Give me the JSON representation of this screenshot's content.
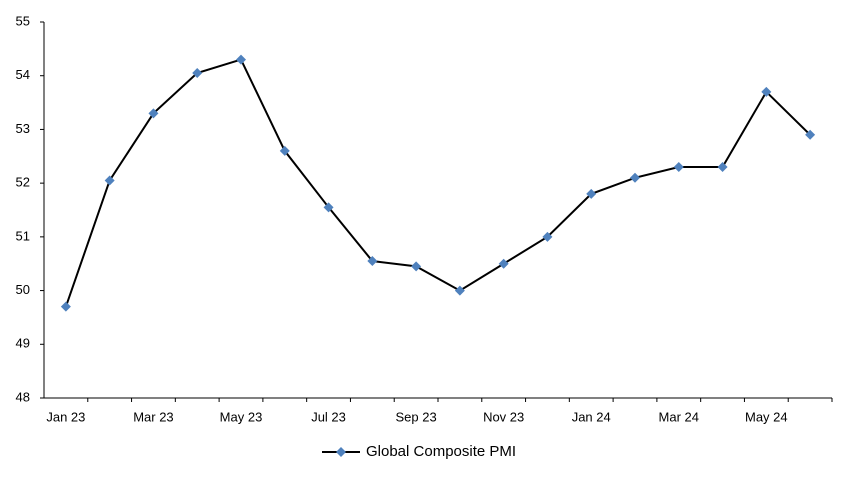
{
  "chart_data": {
    "type": "line",
    "categories": [
      "Jan 23",
      null,
      "Mar 23",
      null,
      "May 23",
      null,
      "Jul 23",
      null,
      "Sep 23",
      null,
      "Nov 23",
      null,
      "Jan 24",
      null,
      "Mar 24",
      null,
      "May 24",
      null
    ],
    "series": [
      {
        "name": "Global Composite PMI",
        "color": "#4f81bd",
        "values": [
          49.7,
          52.05,
          53.3,
          54.05,
          54.3,
          52.6,
          51.55,
          50.55,
          50.45,
          50.0,
          50.5,
          51.0,
          51.8,
          52.1,
          52.3,
          52.3,
          53.7,
          52.9
        ]
      }
    ],
    "ylim": [
      48,
      55
    ],
    "yticks": [
      48,
      49,
      50,
      51,
      52,
      53,
      54,
      55
    ],
    "legend": "bottom"
  }
}
